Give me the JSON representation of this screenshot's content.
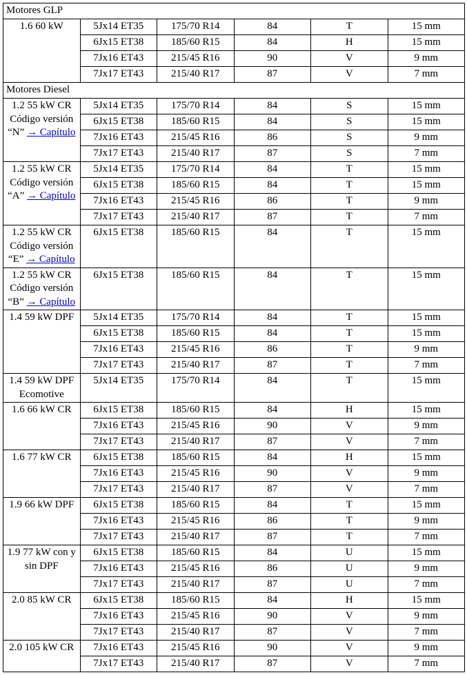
{
  "link_text": "→ Capítulo",
  "sections": [
    {
      "title": "Motores GLP",
      "groups": [
        {
          "label": "1.6 60 kW",
          "has_link": false,
          "rows": [
            [
              "5Jx14 ET35",
              "175/70 R14",
              "84",
              "T",
              "15 mm"
            ],
            [
              "6Jx15 ET38",
              "185/60 R15",
              "84",
              "H",
              "15 mm"
            ],
            [
              "7Jx16 ET43",
              "215/45 R16",
              "90",
              "V",
              "9 mm"
            ],
            [
              "7Jx17 ET43",
              "215/40 R17",
              "87",
              "V",
              "7 mm"
            ]
          ]
        }
      ]
    },
    {
      "title": "Motores Diesel",
      "groups": [
        {
          "label": "1.2 55 kW CR Código versión “N” ",
          "has_link": true,
          "rows": [
            [
              "5Jx14 ET35",
              "175/70 R14",
              "84",
              "S",
              "15 mm"
            ],
            [
              "6Jx15 ET38",
              "185/60 R15",
              "84",
              "S",
              "15 mm"
            ],
            [
              "7Jx16 ET43",
              "215/45 R16",
              "86",
              "S",
              "9 mm"
            ],
            [
              "7Jx17 ET43",
              "215/40 R17",
              "87",
              "S",
              "7 mm"
            ]
          ]
        },
        {
          "label": "1.2 55 kW CR Código versión “A” ",
          "has_link": true,
          "rows": [
            [
              "5Jx14 ET35",
              "175/70 R14",
              "84",
              "T",
              "15 mm"
            ],
            [
              "6Jx15 ET38",
              "185/60 R15",
              "84",
              "T",
              "15 mm"
            ],
            [
              "7Jx16 ET43",
              "215/45 R16",
              "86",
              "T",
              "9 mm"
            ],
            [
              "7Jx17 ET43",
              "215/40 R17",
              "87",
              "T",
              "7 mm"
            ]
          ]
        },
        {
          "label": "1.2 55 kW CR Código versión “E” ",
          "has_link": true,
          "rows": [
            [
              "6Jx15 ET38",
              "185/60 R15",
              "84",
              "T",
              "15 mm"
            ]
          ]
        },
        {
          "label": "1.2 55 kW CR Código versión “B” ",
          "has_link": true,
          "rows": [
            [
              "6Jx15 ET38",
              "185/60 R15",
              "84",
              "T",
              "15 mm"
            ]
          ]
        },
        {
          "label": "1.4 59 kW DPF",
          "has_link": false,
          "rows": [
            [
              "5Jx14 ET35",
              "175/70 R14",
              "84",
              "T",
              "15 mm"
            ],
            [
              "6Jx15 ET38",
              "185/60 R15",
              "84",
              "T",
              "15 mm"
            ],
            [
              "7Jx16 ET43",
              "215/45 R16",
              "86",
              "T",
              "9 mm"
            ],
            [
              "7Jx17 ET43",
              "215/40 R17",
              "87",
              "T",
              "7 mm"
            ]
          ]
        },
        {
          "label": "1.4 59 kW DPF Ecomotive",
          "has_link": false,
          "rows": [
            [
              "5Jx14 ET35",
              "175/70 R14",
              "84",
              "T",
              "15 mm"
            ]
          ]
        },
        {
          "label": "1.6 66 kW CR",
          "has_link": false,
          "rows": [
            [
              "6Jx15 ET38",
              "185/60 R15",
              "84",
              "H",
              "15 mm"
            ],
            [
              "7Jx16 ET43",
              "215/45 R16",
              "90",
              "V",
              "9 mm"
            ],
            [
              "7Jx17 ET43",
              "215/40 R17",
              "87",
              "V",
              "7 mm"
            ]
          ]
        },
        {
          "label": "1.6 77 kW CR",
          "has_link": false,
          "rows": [
            [
              "6Jx15 ET38",
              "185/60 R15",
              "84",
              "H",
              "15 mm"
            ],
            [
              "7Jx16 ET43",
              "215/45 R16",
              "90",
              "V",
              "9 mm"
            ],
            [
              "7Jx17 ET43",
              "215/40 R17",
              "87",
              "V",
              "7 mm"
            ]
          ]
        },
        {
          "label": "1.9 66 kW DPF",
          "has_link": false,
          "rows": [
            [
              "6Jx15 ET38",
              "185/60 R15",
              "84",
              "T",
              "15 mm"
            ],
            [
              "7Jx16 ET43",
              "215/45 R16",
              "86",
              "T",
              "9 mm"
            ],
            [
              "7Jx17 ET43",
              "215/40 R17",
              "87",
              "T",
              "7 mm"
            ]
          ]
        },
        {
          "label": "1.9 77 kW con y sin DPF",
          "has_link": false,
          "rows": [
            [
              "6Jx15 ET38",
              "185/60 R15",
              "84",
              "U",
              "15 mm"
            ],
            [
              "7Jx16 ET43",
              "215/45 R16",
              "86",
              "U",
              "9 mm"
            ],
            [
              "7Jx17 ET43",
              "215/40 R17",
              "87",
              "U",
              "7 mm"
            ]
          ]
        },
        {
          "label": "2.0 85 kW CR",
          "has_link": false,
          "rows": [
            [
              "6Jx15 ET38",
              "185/60 R15",
              "84",
              "H",
              "15 mm"
            ],
            [
              "7Jx16 ET43",
              "215/45 R16",
              "90",
              "V",
              "9 mm"
            ],
            [
              "7Jx17 ET43",
              "215/40 R17",
              "87",
              "V",
              "7 mm"
            ]
          ]
        },
        {
          "label": "2.0 105 kW CR",
          "has_link": false,
          "rows": [
            [
              "7Jx16 ET43",
              "215/45 R16",
              "90",
              "V",
              "9 mm"
            ],
            [
              "7Jx17 ET43",
              "215/40 R17",
              "87",
              "V",
              "7 mm"
            ]
          ]
        }
      ]
    }
  ]
}
